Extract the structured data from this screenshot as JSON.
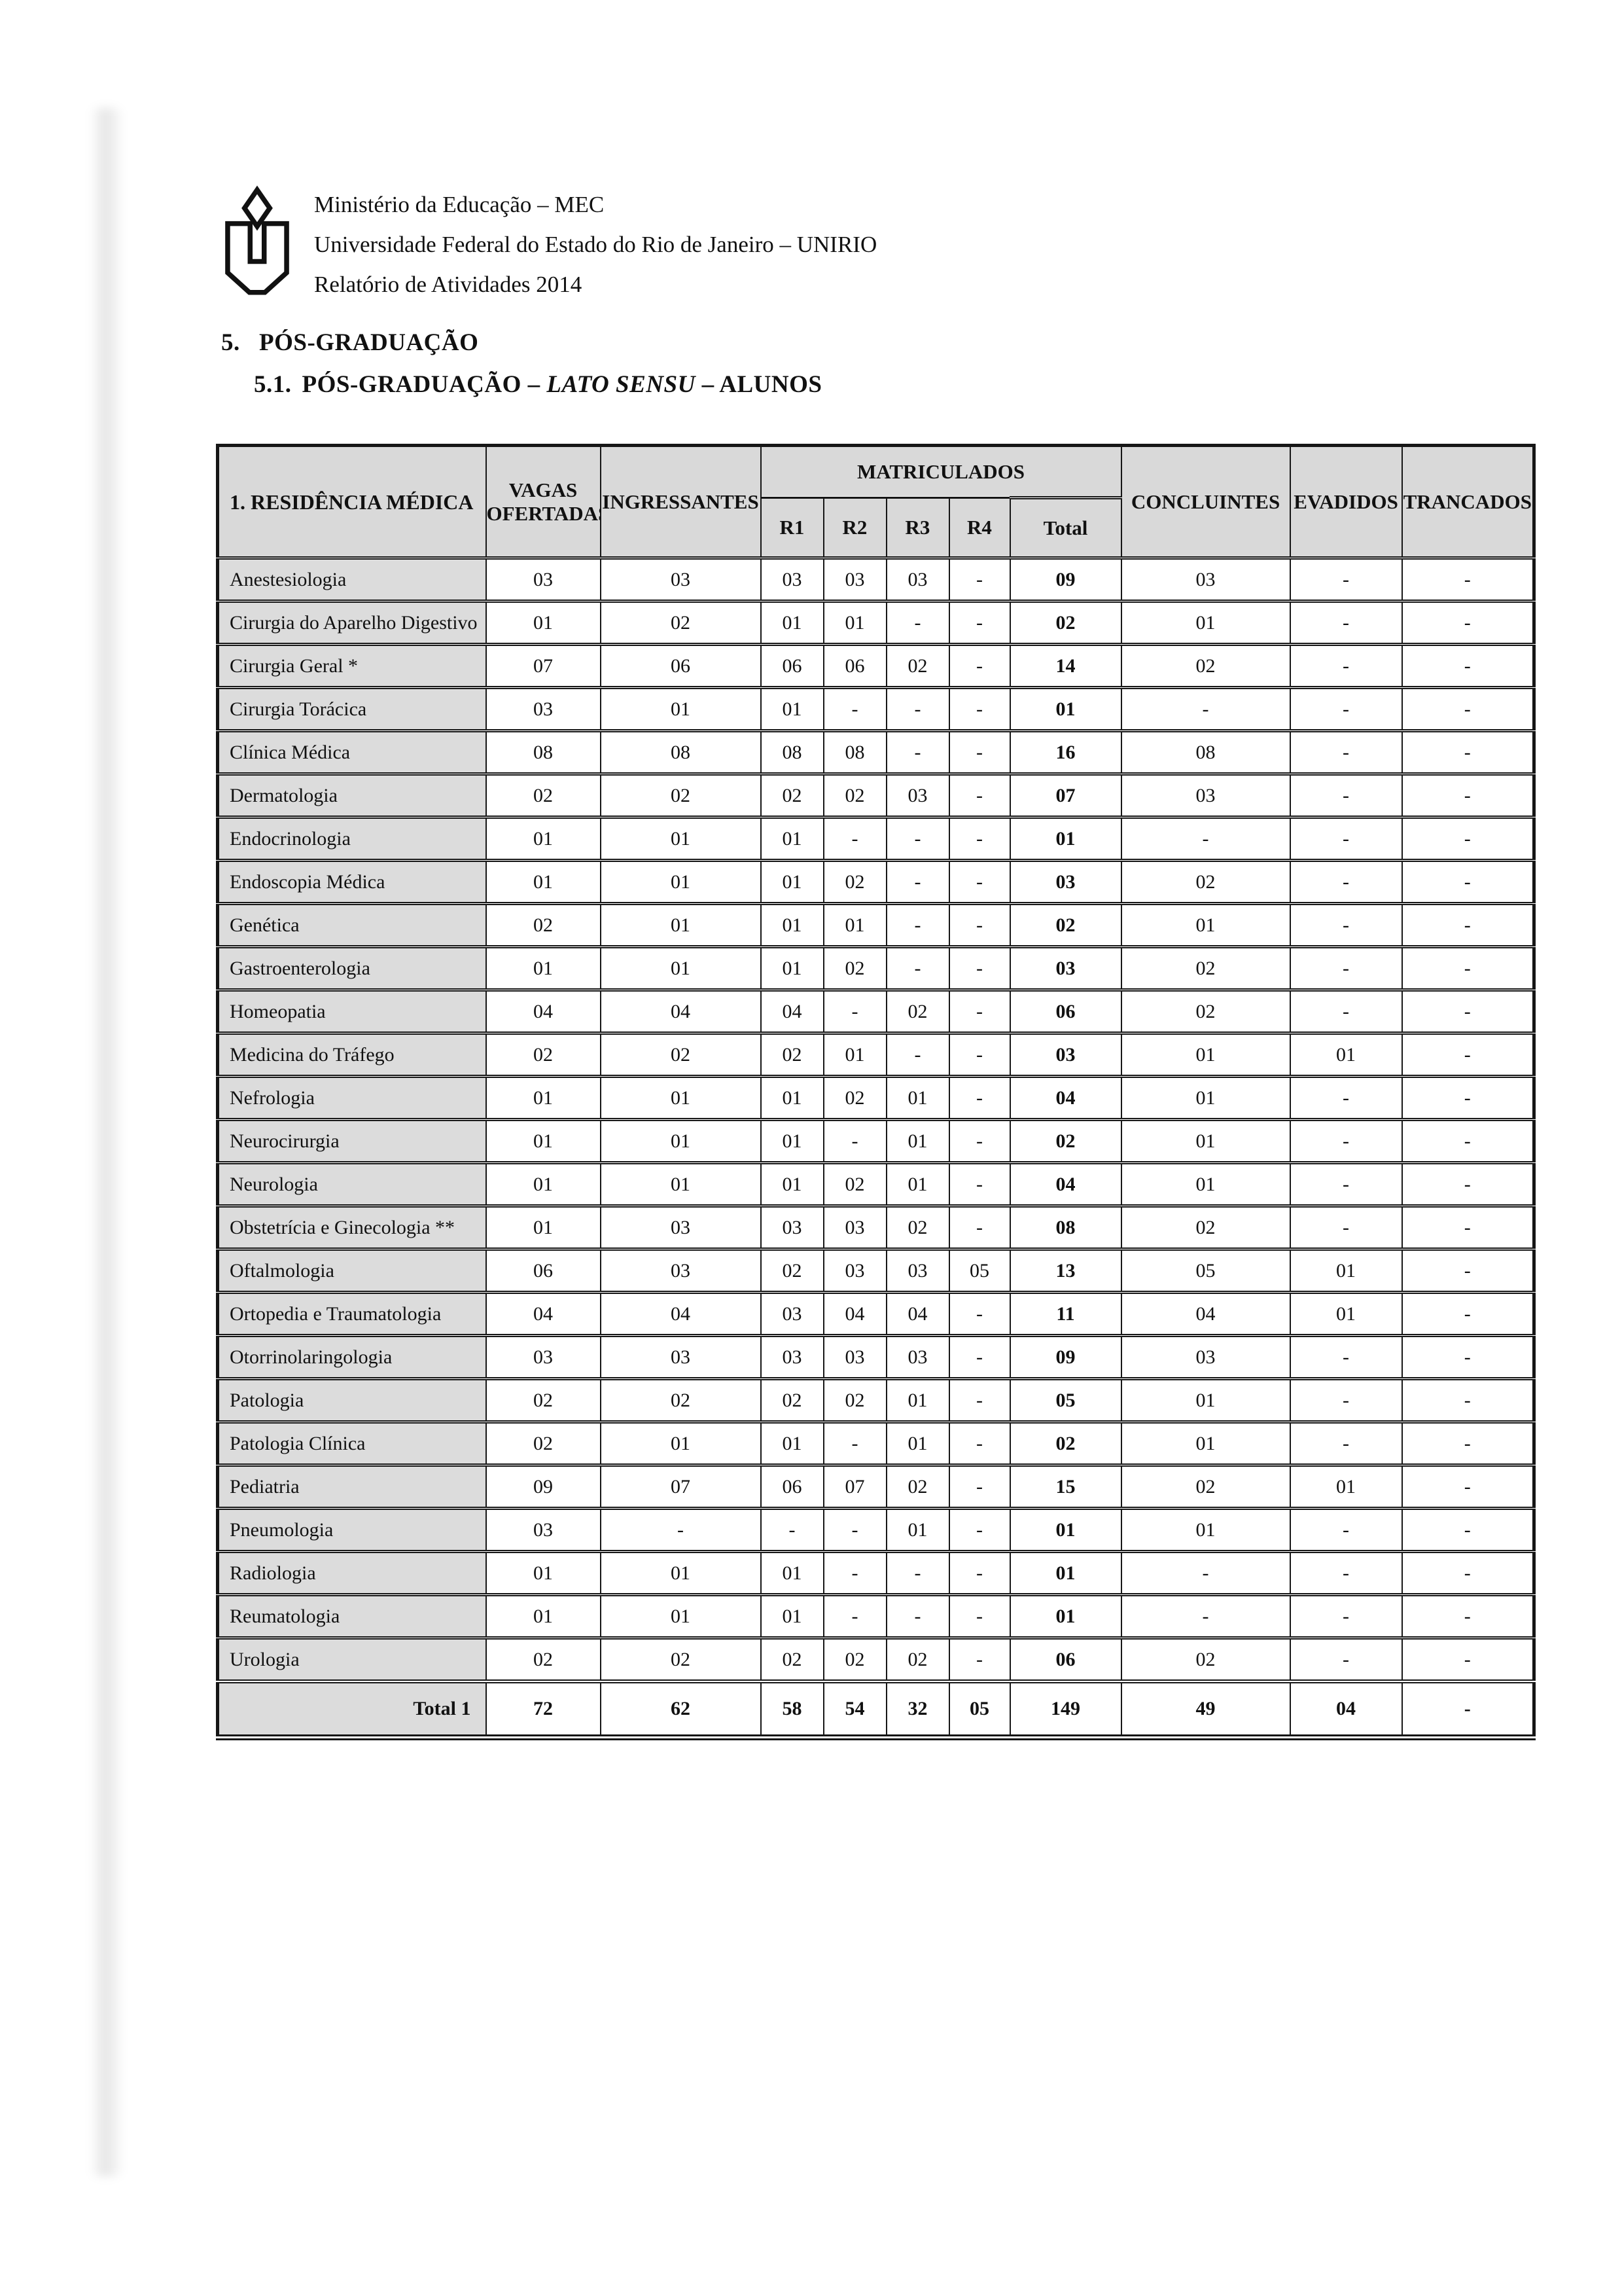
{
  "colors": {
    "header_fill": "#d9d9d9",
    "row_label_fill": "#dcdcdc",
    "border": "#161616",
    "text": "#111111",
    "page": "#ffffff"
  },
  "header": {
    "logo": "unirio-logo",
    "lines": [
      "Ministério da Educação – MEC",
      "Universidade Federal do Estado do Rio de Janeiro – UNIRIO",
      "Relatório de Atividades 2014"
    ]
  },
  "headings": {
    "section_number": "5.",
    "section_title": "PÓS-GRADUAÇÃO",
    "subsection_number": "5.1.",
    "subsection_pre": "PÓS-GRADUAÇÃO – ",
    "subsection_italic": "LATO SENSU",
    "subsection_post": " – ALUNOS"
  },
  "table": {
    "headers": {
      "residencia": "1. RESIDÊNCIA MÉDICA",
      "vagas": "VAGAS OFERTADAS",
      "ingressantes": "INGRESSANTES",
      "matriculados": "MATRICULADOS",
      "r1": "R1",
      "r2": "R2",
      "r3": "R3",
      "r4": "R4",
      "total": "Total",
      "concluintes": "CONCLUINTES",
      "evadidos": "EVADIDOS",
      "trancados": "TRANCADOS"
    },
    "rows": [
      {
        "name": "Anestesiologia",
        "values": [
          "03",
          "03",
          "03",
          "03",
          "03",
          "-",
          "09",
          "03",
          "-",
          "-"
        ]
      },
      {
        "name": "Cirurgia do Aparelho Digestivo",
        "values": [
          "01",
          "02",
          "01",
          "01",
          "-",
          "-",
          "02",
          "01",
          "-",
          "-"
        ]
      },
      {
        "name": "Cirurgia Geral *",
        "values": [
          "07",
          "06",
          "06",
          "06",
          "02",
          "-",
          "14",
          "02",
          "-",
          "-"
        ]
      },
      {
        "name": "Cirurgia Torácica",
        "values": [
          "03",
          "01",
          "01",
          "-",
          "-",
          "-",
          "01",
          "-",
          "-",
          "-"
        ]
      },
      {
        "name": "Clínica Médica",
        "values": [
          "08",
          "08",
          "08",
          "08",
          "-",
          "-",
          "16",
          "08",
          "-",
          "-"
        ]
      },
      {
        "name": "Dermatologia",
        "values": [
          "02",
          "02",
          "02",
          "02",
          "03",
          "-",
          "07",
          "03",
          "-",
          "-"
        ]
      },
      {
        "name": "Endocrinologia",
        "values": [
          "01",
          "01",
          "01",
          "-",
          "-",
          "-",
          "01",
          "-",
          "-",
          "-"
        ]
      },
      {
        "name": "Endoscopia Médica",
        "values": [
          "01",
          "01",
          "01",
          "02",
          "-",
          "-",
          "03",
          "02",
          "-",
          "-"
        ]
      },
      {
        "name": "Genética",
        "values": [
          "02",
          "01",
          "01",
          "01",
          "-",
          "-",
          "02",
          "01",
          "-",
          "-"
        ]
      },
      {
        "name": "Gastroenterologia",
        "values": [
          "01",
          "01",
          "01",
          "02",
          "-",
          "-",
          "03",
          "02",
          "-",
          "-"
        ]
      },
      {
        "name": "Homeopatia",
        "values": [
          "04",
          "04",
          "04",
          "-",
          "02",
          "-",
          "06",
          "02",
          "-",
          "-"
        ]
      },
      {
        "name": "Medicina do Tráfego",
        "values": [
          "02",
          "02",
          "02",
          "01",
          "-",
          "-",
          "03",
          "01",
          "01",
          "-"
        ]
      },
      {
        "name": "Nefrologia",
        "values": [
          "01",
          "01",
          "01",
          "02",
          "01",
          "-",
          "04",
          "01",
          "-",
          "-"
        ]
      },
      {
        "name": "Neurocirurgia",
        "values": [
          "01",
          "01",
          "01",
          "-",
          "01",
          "-",
          "02",
          "01",
          "-",
          "-"
        ]
      },
      {
        "name": "Neurologia",
        "values": [
          "01",
          "01",
          "01",
          "02",
          "01",
          "-",
          "04",
          "01",
          "-",
          "-"
        ]
      },
      {
        "name": "Obstetrícia e Ginecologia **",
        "values": [
          "01",
          "03",
          "03",
          "03",
          "02",
          "-",
          "08",
          "02",
          "-",
          "-"
        ]
      },
      {
        "name": "Oftalmologia",
        "values": [
          "06",
          "03",
          "02",
          "03",
          "03",
          "05",
          "13",
          "05",
          "01",
          "-"
        ]
      },
      {
        "name": "Ortopedia e Traumatologia",
        "values": [
          "04",
          "04",
          "03",
          "04",
          "04",
          "-",
          "11",
          "04",
          "01",
          "-"
        ]
      },
      {
        "name": "Otorrinolaringologia",
        "values": [
          "03",
          "03",
          "03",
          "03",
          "03",
          "-",
          "09",
          "03",
          "-",
          "-"
        ]
      },
      {
        "name": "Patologia",
        "values": [
          "02",
          "02",
          "02",
          "02",
          "01",
          "-",
          "05",
          "01",
          "-",
          "-"
        ]
      },
      {
        "name": "Patologia Clínica",
        "values": [
          "02",
          "01",
          "01",
          "-",
          "01",
          "-",
          "02",
          "01",
          "-",
          "-"
        ]
      },
      {
        "name": "Pediatria",
        "values": [
          "09",
          "07",
          "06",
          "07",
          "02",
          "-",
          "15",
          "02",
          "01",
          "-"
        ]
      },
      {
        "name": "Pneumologia",
        "values": [
          "03",
          "-",
          "-",
          "-",
          "01",
          "-",
          "01",
          "01",
          "-",
          "-"
        ]
      },
      {
        "name": "Radiologia",
        "values": [
          "01",
          "01",
          "01",
          "-",
          "-",
          "-",
          "01",
          "-",
          "-",
          "-"
        ]
      },
      {
        "name": "Reumatologia",
        "values": [
          "01",
          "01",
          "01",
          "-",
          "-",
          "-",
          "01",
          "-",
          "-",
          "-"
        ]
      },
      {
        "name": "Urologia",
        "values": [
          "02",
          "02",
          "02",
          "02",
          "02",
          "-",
          "06",
          "02",
          "-",
          "-"
        ]
      }
    ],
    "total_row": {
      "label": "Total 1",
      "values": [
        "72",
        "62",
        "58",
        "54",
        "32",
        "05",
        "149",
        "49",
        "04",
        "-"
      ]
    }
  }
}
